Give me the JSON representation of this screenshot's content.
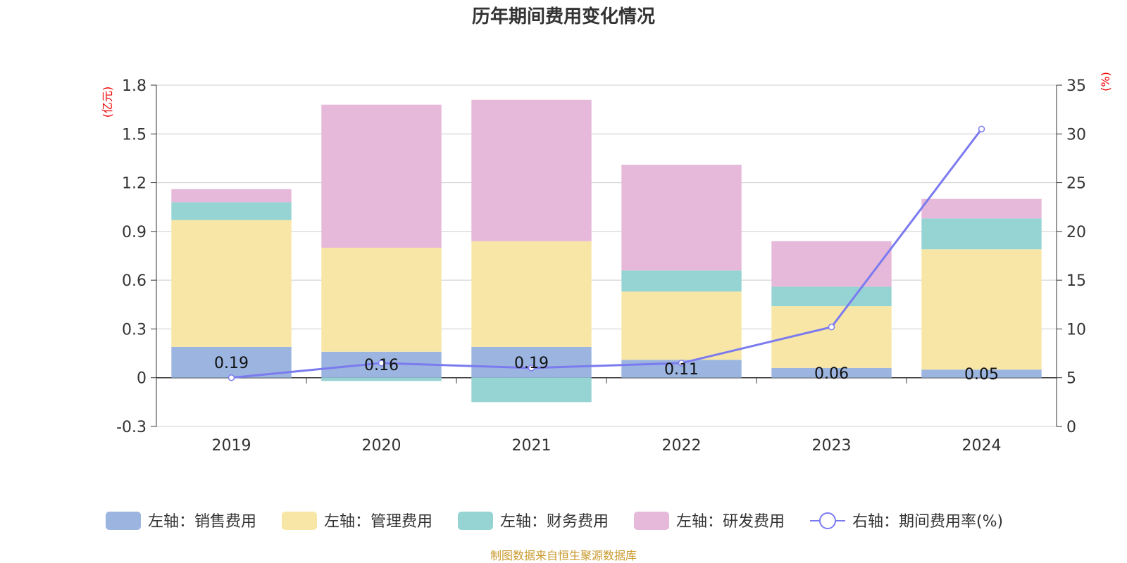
{
  "chart_data": {
    "type": "bar",
    "title": "历年期间费用变化情况",
    "categories": [
      "2019",
      "2020",
      "2021",
      "2022",
      "2023",
      "2024"
    ],
    "left_axis": {
      "unit": "(亿元)",
      "ylim": [
        -0.3,
        1.8
      ],
      "ticks": [
        "1.8",
        "1.5",
        "1.2",
        "0.9",
        "0.6",
        "0.3",
        "0",
        "-0.3"
      ]
    },
    "right_axis": {
      "unit": "(%)",
      "ylim": [
        0,
        35
      ],
      "ticks": [
        "35",
        "30",
        "25",
        "20",
        "15",
        "10",
        "5",
        "0"
      ]
    },
    "series": [
      {
        "name": "左轴：销售费用",
        "type": "bar",
        "axis": "left",
        "color": "#9bb5e0",
        "values": [
          0.19,
          0.16,
          0.19,
          0.11,
          0.06,
          0.05
        ],
        "labels": [
          "0.19",
          "0.16",
          "0.19",
          "0.11",
          "0.06",
          "0.05"
        ]
      },
      {
        "name": "左轴：管理费用",
        "type": "bar",
        "axis": "left",
        "color": "#f7e6a6",
        "values": [
          0.78,
          0.64,
          0.65,
          0.42,
          0.38,
          0.74
        ]
      },
      {
        "name": "左轴：财务费用",
        "type": "bar",
        "axis": "left",
        "color": "#96d3d3",
        "values": [
          0.11,
          -0.02,
          -0.15,
          0.13,
          0.12,
          0.19
        ]
      },
      {
        "name": "左轴：研发费用",
        "type": "bar",
        "axis": "left",
        "color": "#e6b8d9",
        "values": [
          0.08,
          0.88,
          0.87,
          0.65,
          0.28,
          0.12
        ]
      },
      {
        "name": "右轴：期间费用率(%)",
        "type": "line",
        "axis": "right",
        "color": "#7b7bef",
        "values": [
          5.0,
          6.5,
          6.0,
          6.5,
          10.2,
          30.5
        ]
      }
    ],
    "legend_position": "bottom",
    "grid": true
  },
  "source": "制图数据来自恒生聚源数据库"
}
